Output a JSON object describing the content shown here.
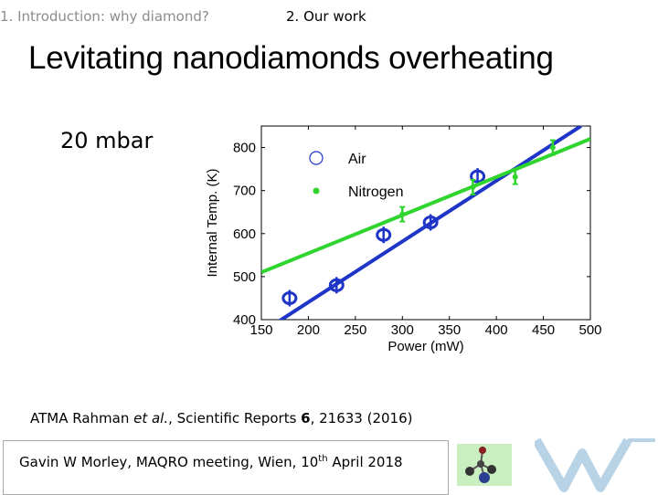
{
  "nav": {
    "item1": "1. Introduction: why diamond?",
    "item2": "2. Our work"
  },
  "title": "Levitating nanodiamonds overheating",
  "pressure_label": "20 mbar",
  "citation": {
    "authors": "ATMA Rahman ",
    "etal": "et al.",
    "journal": ", Scientific Reports ",
    "volume": "6",
    "rest": ", 21633 (2016)"
  },
  "footer": {
    "text": "Gavin W Morley, MAQRO meeting, Wien, 10",
    "sup": "th",
    "text_end": " April 2018"
  },
  "colors": {
    "air": "#1f35c8",
    "nitrogen": "#2fd42f",
    "footer_bg": "#c9efc0"
  },
  "chart_data": {
    "type": "scatter",
    "xlabel": "Power (mW)",
    "ylabel": "Internal Temp. (K)",
    "xlim": [
      150,
      500
    ],
    "ylim": [
      400,
      850
    ],
    "xticks": [
      "150",
      "200",
      "250",
      "300",
      "350",
      "400",
      "450",
      "500"
    ],
    "yticks": [
      "400",
      "500",
      "600",
      "700",
      "800"
    ],
    "legend": [
      "Air",
      "Nitrogen"
    ],
    "series": [
      {
        "name": "Air",
        "marker": "open-circle-errorbar",
        "color": "#1f35c8",
        "x": [
          180,
          230,
          280,
          330,
          380
        ],
        "y": [
          450,
          480,
          597,
          626,
          733
        ],
        "fit": {
          "x": [
            150,
            490
          ],
          "y": [
            370,
            850
          ]
        }
      },
      {
        "name": "Nitrogen",
        "marker": "dot-errorbar",
        "color": "#2fd42f",
        "x": [
          300,
          375,
          420,
          460
        ],
        "y": [
          645,
          708,
          732,
          800
        ],
        "fit": {
          "x": [
            150,
            500
          ],
          "y": [
            510,
            820
          ]
        }
      }
    ]
  }
}
